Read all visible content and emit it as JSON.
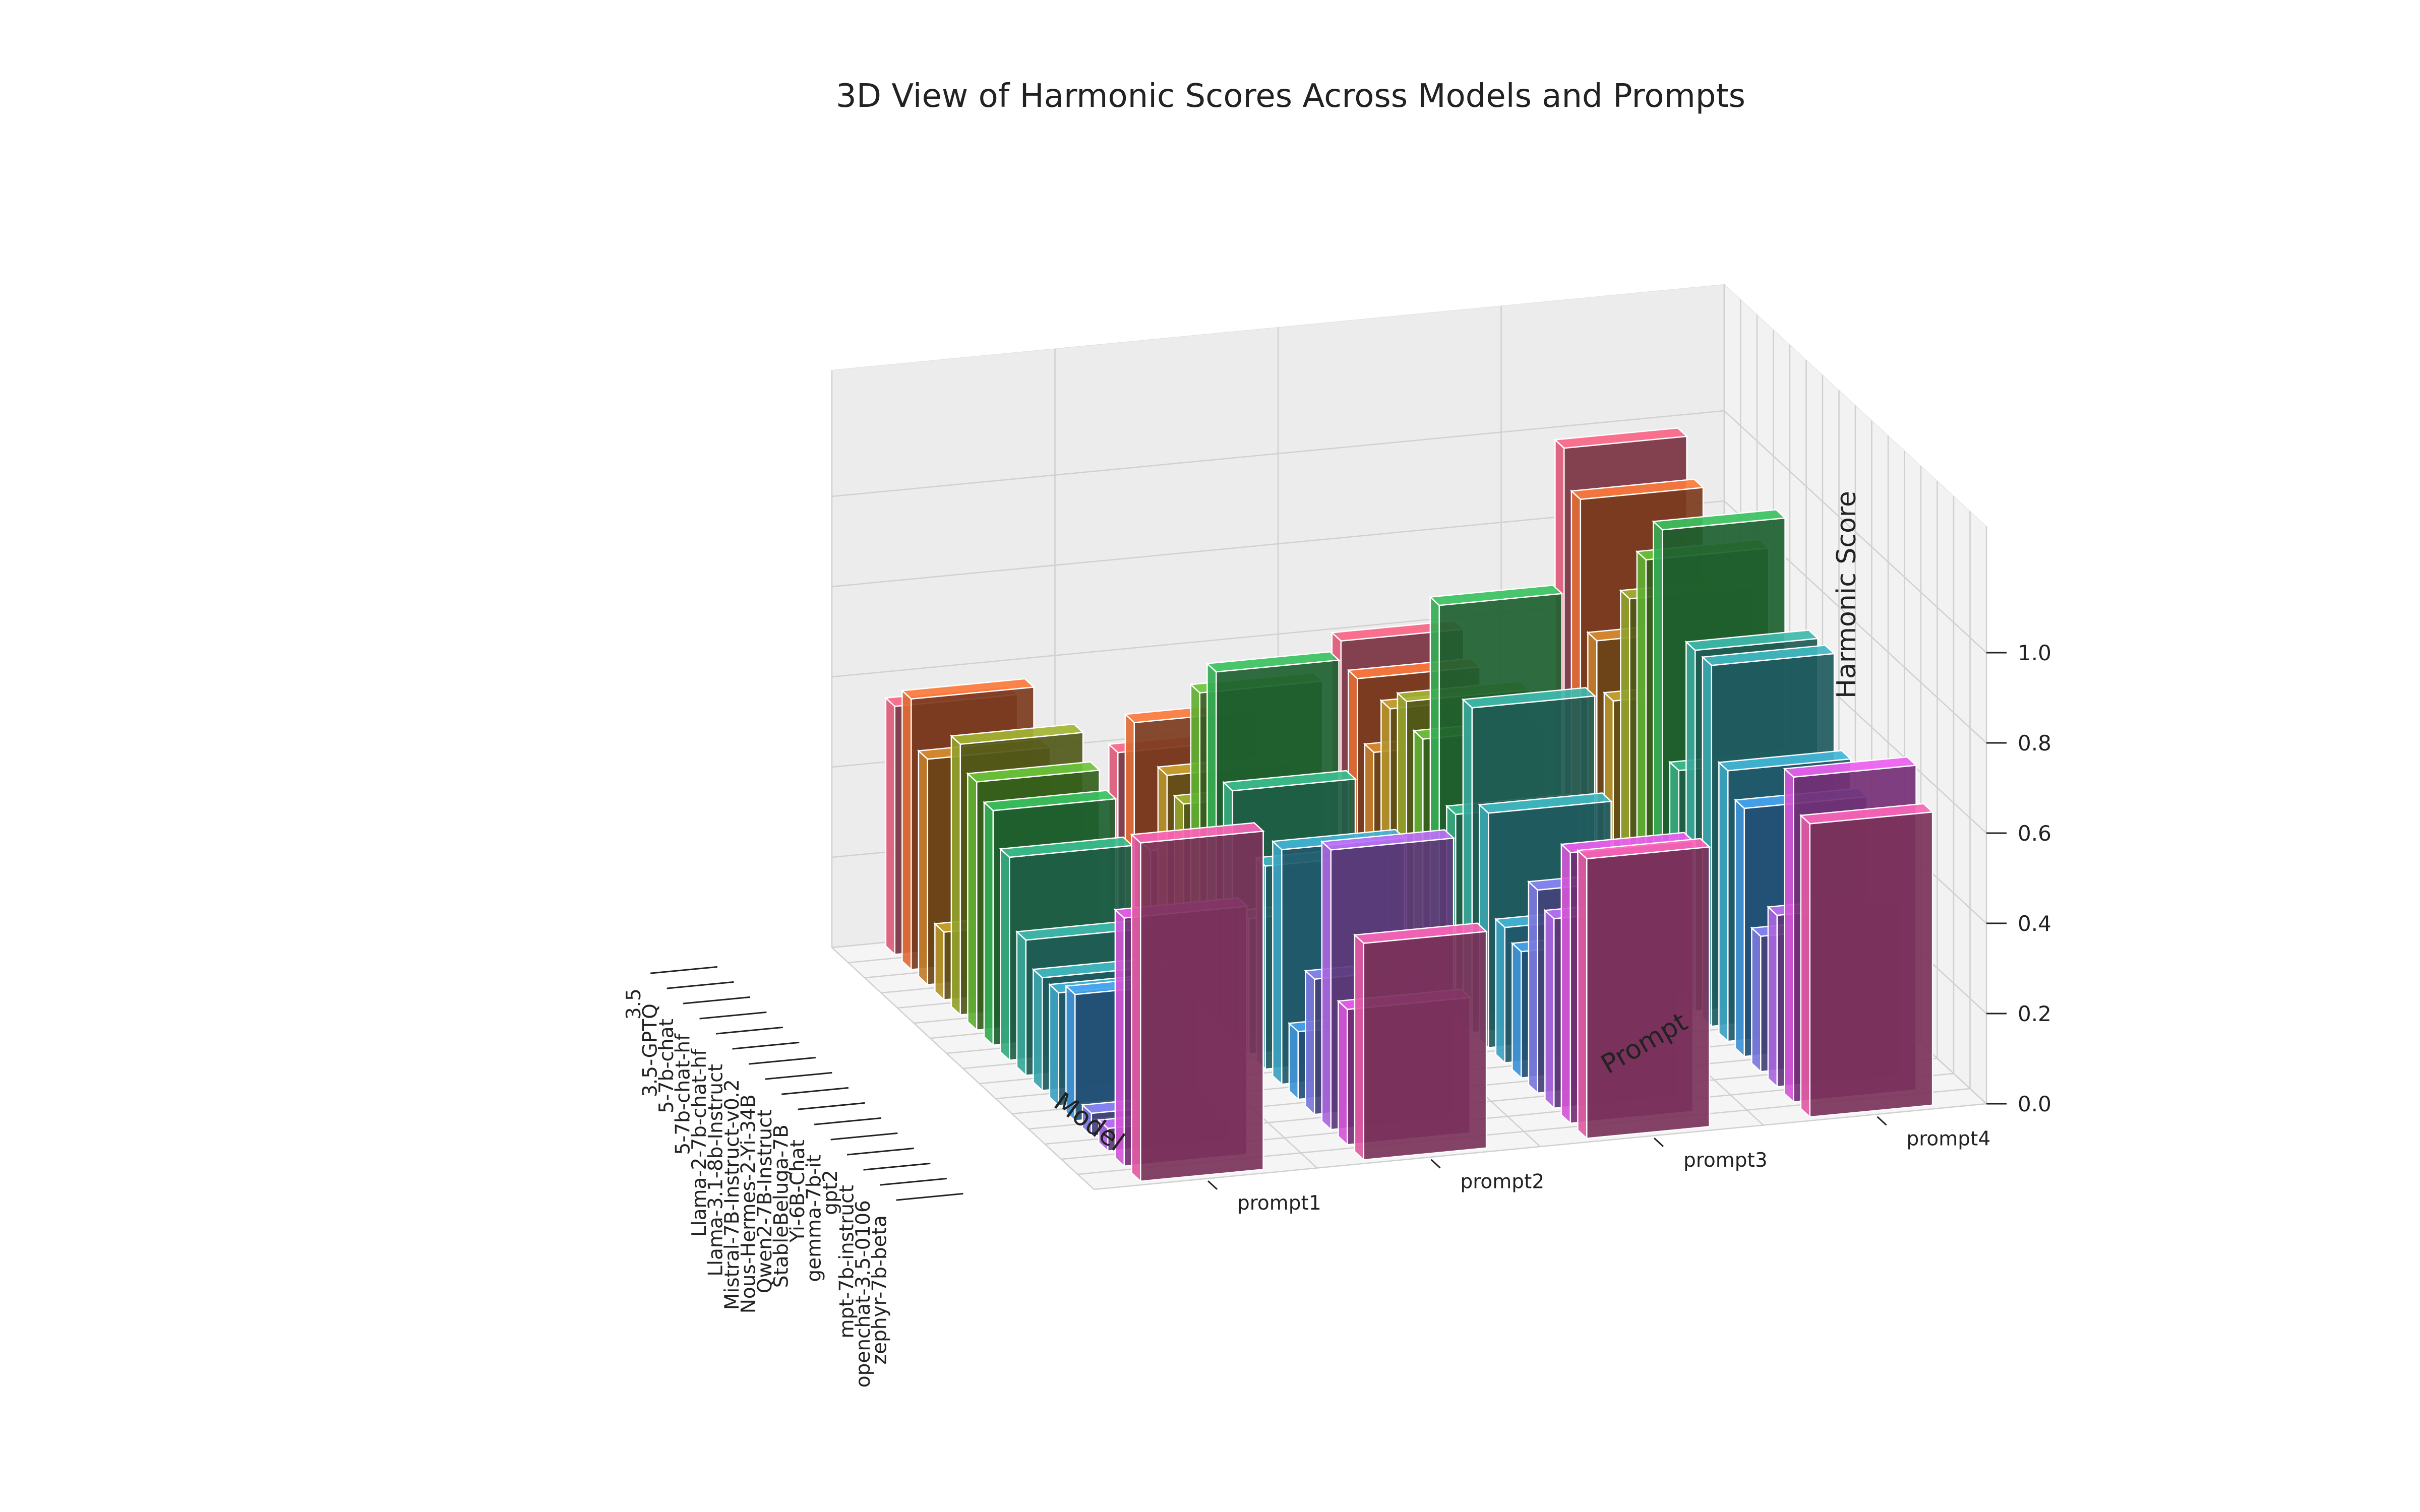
{
  "chart_data": {
    "type": "bar3d",
    "title": "3D View of Harmonic Scores Across Models and Prompts",
    "xlabel": "Model",
    "ylabel": "Prompt",
    "zlabel": "Harmonic Score",
    "zlim": [
      0,
      1.0
    ],
    "z_ticks": [
      "0.0",
      "0.2",
      "0.4",
      "0.6",
      "0.8",
      "1.0"
    ],
    "prompts": [
      "prompt1",
      "prompt2",
      "prompt3",
      "prompt4"
    ],
    "models": [
      {
        "name": "3.5",
        "color": "#dd5a78",
        "values": [
          0.55,
          0.4,
          0.6,
          0.98
        ]
      },
      {
        "name": "3.5-GPTQ",
        "color": "#e06c35",
        "values": [
          0.6,
          0.5,
          0.55,
          0.9
        ]
      },
      {
        "name": "5-7b-chat",
        "color": "#c17d2c",
        "values": [
          0.5,
          0.25,
          0.42,
          0.62
        ]
      },
      {
        "name": "5-7b-chat-hf",
        "color": "#b4922a",
        "values": [
          0.15,
          0.45,
          0.55,
          0.52
        ]
      },
      {
        "name": "Llama-2-7b-chat-hf",
        "color": "#92a12d",
        "values": [
          0.6,
          0.42,
          0.6,
          0.78
        ]
      },
      {
        "name": "Llama-3.1-8b-Instruct",
        "color": "#5faf33",
        "values": [
          0.55,
          0.7,
          0.55,
          0.9
        ]
      },
      {
        "name": "Mistral-7B-Instruct-v0.2",
        "color": "#35ac55",
        "values": [
          0.52,
          0.78,
          0.88,
          1.0
        ]
      },
      {
        "name": "Nous-Hermes-2-Yi-34B",
        "color": "#36aa7f",
        "values": [
          0.45,
          0.55,
          0.45,
          0.5
        ]
      },
      {
        "name": "Qwen2-7B-Instruct",
        "color": "#38a79a",
        "values": [
          0.3,
          0.3,
          0.72,
          0.8
        ]
      },
      {
        "name": "StableBeluga-7B",
        "color": "#3aa5ad",
        "values": [
          0.25,
          0.45,
          0.52,
          0.8
        ]
      },
      {
        "name": "Yi-6B-Chat",
        "color": "#3ca2c0",
        "values": [
          0.25,
          0.52,
          0.3,
          0.6
        ]
      },
      {
        "name": "gemma-7b-it",
        "color": "#3f92d6",
        "values": [
          0.28,
          0.15,
          0.28,
          0.55
        ]
      },
      {
        "name": "gpt2",
        "color": "#7b78dd",
        "values": [
          0.05,
          0.3,
          0.45,
          0.3
        ]
      },
      {
        "name": "mpt-7b-instruct",
        "color": "#a965de",
        "values": [
          0.05,
          0.62,
          0.42,
          0.38
        ]
      },
      {
        "name": "openchat-3.5-0106",
        "color": "#d356d6",
        "values": [
          0.55,
          0.3,
          0.6,
          0.72
        ]
      },
      {
        "name": "zephyr-7b-beta",
        "color": "#e05aa4",
        "values": [
          0.75,
          0.48,
          0.62,
          0.65
        ]
      }
    ]
  }
}
